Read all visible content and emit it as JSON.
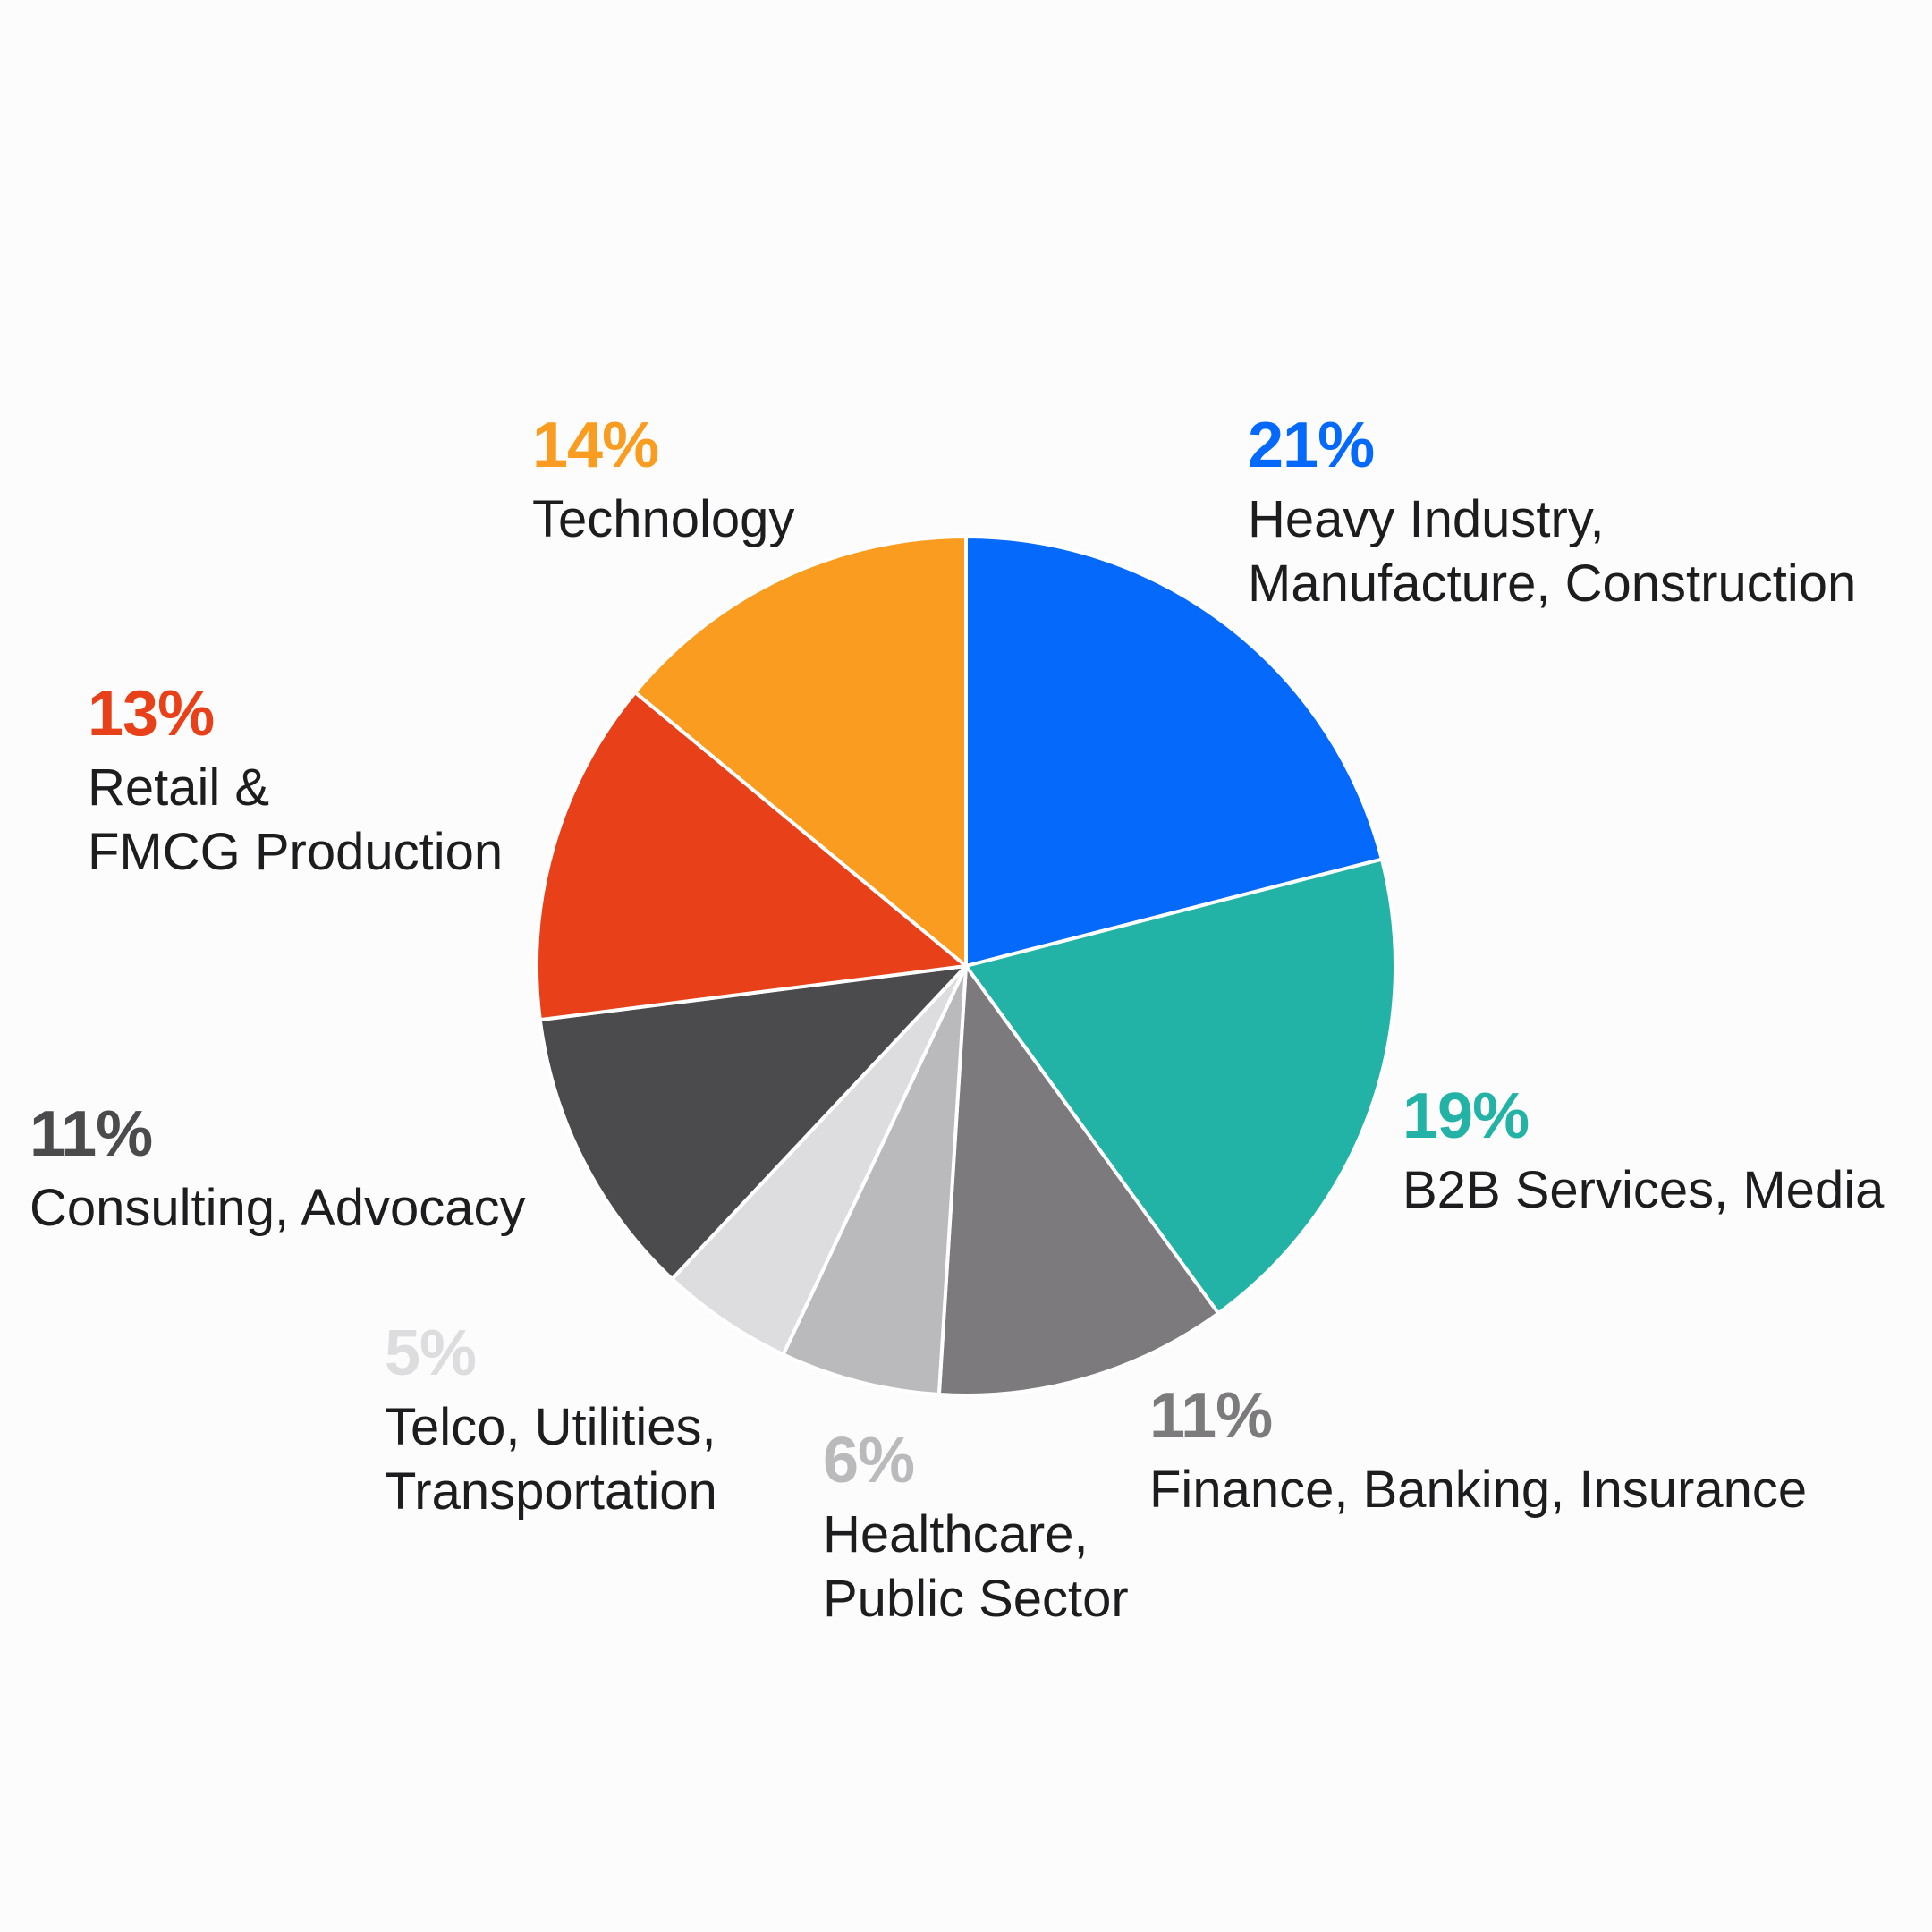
{
  "chart_data": {
    "type": "pie",
    "start_angle_deg": 0,
    "direction": "clockwise",
    "slices": [
      {
        "name": "Heavy Industry,\nManufacture, Construction",
        "value": 21,
        "value_label": "21%",
        "color": "#0569fb"
      },
      {
        "name": "B2B Services, Media",
        "value": 19,
        "value_label": "19%",
        "color": "#22b3a6"
      },
      {
        "name": "Finance, Banking, Insurance",
        "value": 11,
        "value_label": "11%",
        "color": "#7d7a7d"
      },
      {
        "name": "Healthcare,\nPublic Sector",
        "value": 6,
        "value_label": "6%",
        "color": "#bab9bb"
      },
      {
        "name": "Telco, Utilities,\nTransportation",
        "value": 5,
        "value_label": "5%",
        "color": "#dddcdf"
      },
      {
        "name": "Consulting, Advocacy",
        "value": 11,
        "value_label": "11%",
        "color": "#4b4a4c"
      },
      {
        "name": "Retail &\nFMCG Production",
        "value": 13,
        "value_label": "13%",
        "color": "#e8411a"
      },
      {
        "name": "Technology",
        "value": 14,
        "value_label": "14%",
        "color": "#fa9c1f"
      }
    ],
    "legend": "none",
    "grid": false
  }
}
